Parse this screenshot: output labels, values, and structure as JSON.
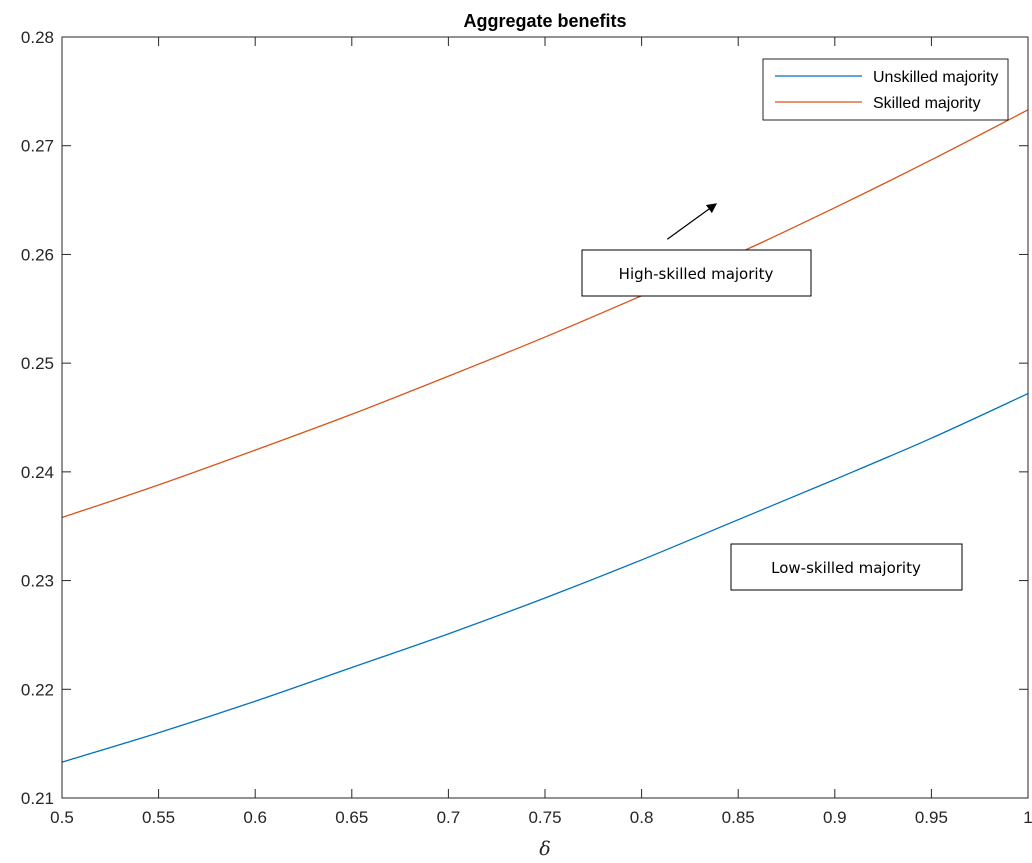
{
  "chart_data": {
    "type": "line",
    "title": "Aggregate benefits",
    "xlabel": "δ",
    "ylabel": "",
    "xlim": [
      0.5,
      1.0
    ],
    "ylim": [
      0.21,
      0.28
    ],
    "xticks": [
      0.5,
      0.55,
      0.6,
      0.65,
      0.7,
      0.75,
      0.8,
      0.85,
      0.9,
      0.95,
      1.0
    ],
    "xtick_labels": [
      "0.5",
      "0.55",
      "0.6",
      "0.65",
      "0.7",
      "0.75",
      "0.8",
      "0.85",
      "0.9",
      "0.95",
      "1"
    ],
    "yticks": [
      0.21,
      0.22,
      0.23,
      0.24,
      0.25,
      0.26,
      0.27,
      0.28
    ],
    "ytick_labels": [
      "0.21",
      "0.22",
      "0.23",
      "0.24",
      "0.25",
      "0.26",
      "0.27",
      "0.28"
    ],
    "grid": false,
    "legend_position": "top-right",
    "x": [
      0.5,
      0.55,
      0.6,
      0.65,
      0.7,
      0.75,
      0.8,
      0.85,
      0.9,
      0.95,
      1.0
    ],
    "series": [
      {
        "name": "Unskilled majority",
        "color": "#0072BD",
        "values": [
          0.2133,
          0.216,
          0.2189,
          0.222,
          0.2251,
          0.2284,
          0.2319,
          0.2356,
          0.2393,
          0.2431,
          0.2472
        ]
      },
      {
        "name": "Skilled majority",
        "color": "#D95319",
        "values": [
          0.2358,
          0.2388,
          0.242,
          0.2453,
          0.2488,
          0.2524,
          0.2562,
          0.2601,
          0.2643,
          0.2687,
          0.2733
        ]
      }
    ],
    "annotations": [
      {
        "text": "High-skilled majority",
        "arrow": {
          "from": [
            0.8133,
            0.2614
          ],
          "to": [
            0.8382,
            0.2646
          ]
        }
      },
      {
        "text": "Low-skilled majority"
      }
    ]
  }
}
